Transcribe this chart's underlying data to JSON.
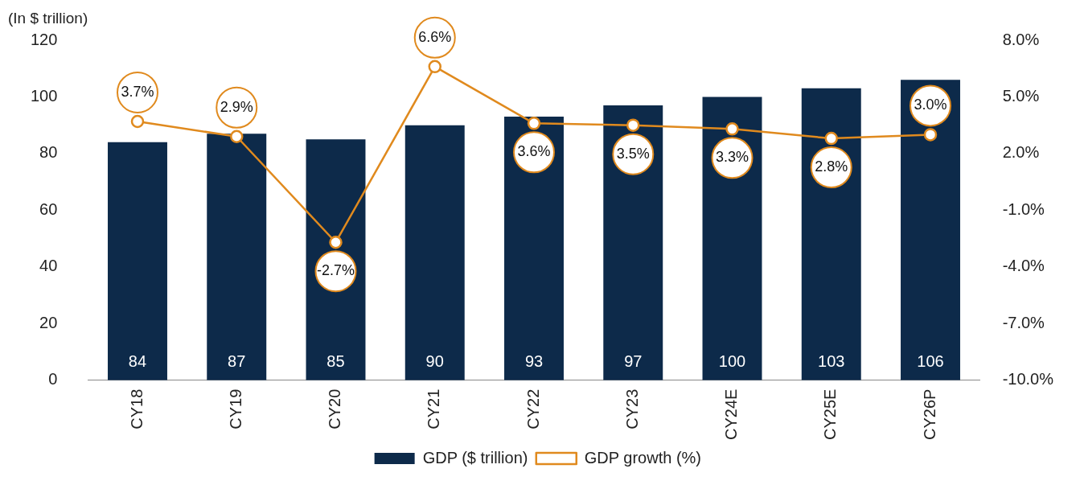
{
  "chart_data": {
    "type": "bar",
    "ylabel": "(In $ trillion)",
    "categories": [
      "CY18",
      "CY19",
      "CY20",
      "CY21",
      "CY22",
      "CY23",
      "CY24E",
      "CY25E",
      "CY26P"
    ],
    "series": [
      {
        "name": "GDP ($ trillion)",
        "type": "bar",
        "color": "#0d2a4a",
        "values": [
          84,
          87,
          85,
          90,
          93,
          97,
          100,
          103,
          106
        ],
        "value_labels": [
          "84",
          "87",
          "85",
          "90",
          "93",
          "97",
          "100",
          "103",
          "106"
        ]
      },
      {
        "name": "GDP growth (%)",
        "type": "line",
        "axis": "y2",
        "color": "#e08a1e",
        "marker": "circle",
        "values": [
          3.7,
          2.9,
          -2.7,
          6.6,
          3.6,
          3.5,
          3.3,
          2.8,
          3.0
        ],
        "value_labels": [
          "3.7%",
          "2.9%",
          "-2.7%",
          "6.6%",
          "3.6%",
          "3.5%",
          "3.3%",
          "2.8%",
          "3.0%"
        ]
      }
    ],
    "ylim": [
      0,
      120
    ],
    "yticks": [
      0,
      20,
      40,
      60,
      80,
      100,
      120
    ],
    "y2lim": [
      -10,
      8
    ],
    "y2ticks": [
      {
        "value": -10,
        "label": "-10.0%"
      },
      {
        "value": -7,
        "label": "-7.0%"
      },
      {
        "value": -4,
        "label": "-4.0%"
      },
      {
        "value": -1,
        "label": "-1.0%"
      },
      {
        "value": 2,
        "label": "2.0%"
      },
      {
        "value": 5,
        "label": "5.0%"
      },
      {
        "value": 8,
        "label": "8.0%"
      }
    ],
    "grid": false,
    "legend": "bottom"
  }
}
